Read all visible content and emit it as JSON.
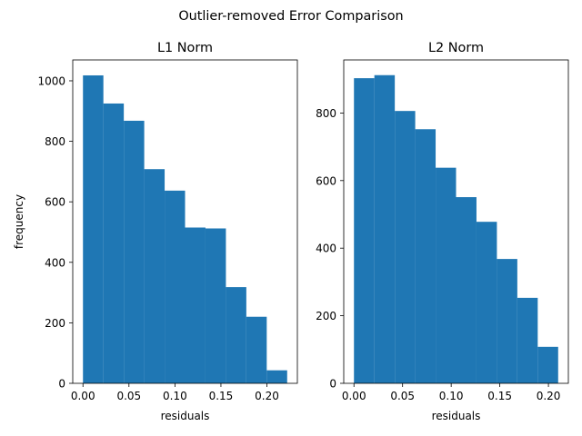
{
  "figure": {
    "suptitle": "Outlier-removed Error Comparison",
    "bar_color": "#1f77b4"
  },
  "chart_data": [
    {
      "type": "bar",
      "title": "L1 Norm",
      "xlabel": "residuals",
      "ylabel": "frequency",
      "bin_edges": [
        0.0,
        0.0222,
        0.0444,
        0.0666,
        0.0888,
        0.111,
        0.1332,
        0.1554,
        0.1776,
        0.1998,
        0.222
      ],
      "values": [
        1018,
        925,
        868,
        708,
        637,
        515,
        512,
        318,
        220,
        43
      ],
      "xlim": [
        -0.0111,
        0.2331
      ],
      "ylim": [
        0,
        1069
      ],
      "xticks": [
        0.0,
        0.05,
        0.1,
        0.15,
        0.2
      ],
      "xtick_labels": [
        "0.00",
        "0.05",
        "0.10",
        "0.15",
        "0.20"
      ],
      "yticks": [
        0,
        200,
        400,
        600,
        800,
        1000
      ],
      "ytick_labels": [
        "0",
        "200",
        "400",
        "600",
        "800",
        "1000"
      ],
      "grid": false
    },
    {
      "type": "bar",
      "title": "L2 Norm",
      "xlabel": "residuals",
      "ylabel": "",
      "bin_edges": [
        0.0,
        0.021,
        0.042,
        0.063,
        0.084,
        0.105,
        0.126,
        0.147,
        0.168,
        0.189,
        0.21
      ],
      "values": [
        903,
        912,
        806,
        752,
        638,
        551,
        478,
        368,
        253,
        108
      ],
      "xlim": [
        -0.0105,
        0.2205
      ],
      "ylim": [
        0,
        957
      ],
      "xticks": [
        0.0,
        0.05,
        0.1,
        0.15,
        0.2
      ],
      "xtick_labels": [
        "0.00",
        "0.05",
        "0.10",
        "0.15",
        "0.20"
      ],
      "yticks": [
        0,
        200,
        400,
        600,
        800
      ],
      "ytick_labels": [
        "0",
        "200",
        "400",
        "600",
        "800"
      ],
      "grid": false
    }
  ]
}
